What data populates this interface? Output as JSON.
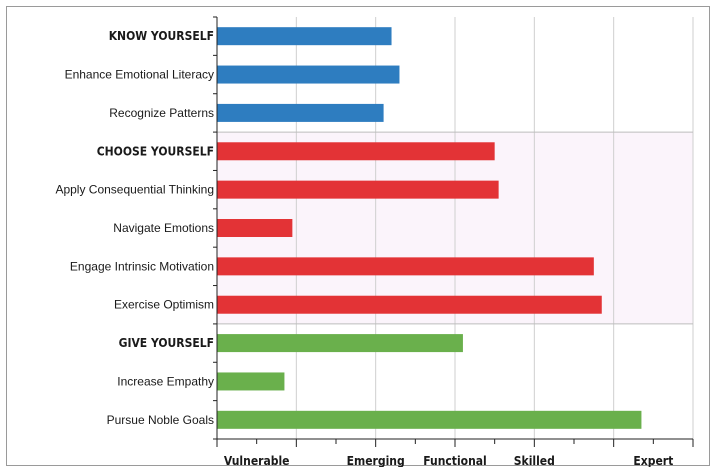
{
  "chart_data": {
    "type": "bar",
    "orientation": "horizontal",
    "title": "",
    "xlabel": "",
    "ylabel": "",
    "xlim": [
      0,
      6
    ],
    "grid": true,
    "legend": "none",
    "x_tick_labels": [
      "Vulnerable",
      "Emerging",
      "Functional",
      "Skilled",
      "Expert"
    ],
    "x_tick_label_positions": [
      0.5,
      2,
      3,
      4,
      5.5
    ],
    "categories": [
      "KNOW YOURSELF",
      "Enhance Emotional Literacy",
      "Recognize Patterns",
      "CHOOSE YOURSELF",
      "Apply Consequential Thinking",
      "Navigate Emotions",
      "Engage Intrinsic Motivation",
      "Exercise Optimism",
      "GIVE YOURSELF",
      "Increase Empathy",
      "Pursue Noble Goals"
    ],
    "values": [
      2.2,
      2.3,
      2.1,
      3.5,
      3.55,
      0.95,
      4.75,
      4.85,
      3.1,
      0.85,
      5.35
    ],
    "is_group_header": [
      true,
      false,
      false,
      true,
      false,
      false,
      false,
      false,
      true,
      false,
      false
    ],
    "groups": [
      {
        "name": "KNOW YOURSELF",
        "color": "#2e7dc0",
        "rows": [
          0,
          1,
          2
        ]
      },
      {
        "name": "CHOOSE YOURSELF",
        "color": "#e33336",
        "rows": [
          3,
          4,
          5,
          6,
          7
        ]
      },
      {
        "name": "GIVE YOURSELF",
        "color": "#6ab04c",
        "rows": [
          8,
          9,
          10
        ]
      }
    ]
  },
  "colors": {
    "grid": "#cfcfcf",
    "separator": "#bdbdbd",
    "axis": "#222222",
    "band_a": "#ffffff",
    "band_b": "#fbf4fb"
  }
}
